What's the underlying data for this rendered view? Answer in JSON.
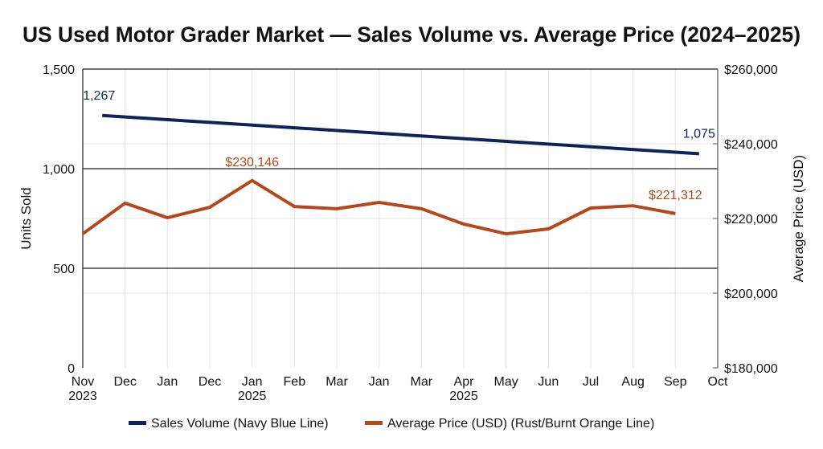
{
  "chart_data": {
    "type": "line",
    "title": "US Used Motor Grader Market — Sales Volume vs. Average Price (2024–2025)",
    "categories": [
      [
        "Nov",
        "2023"
      ],
      [
        "Dec",
        ""
      ],
      [
        "Jan",
        ""
      ],
      [
        "Dec",
        ""
      ],
      [
        "Jan",
        "2025"
      ],
      [
        "Feb",
        ""
      ],
      [
        "Mar",
        ""
      ],
      [
        "Jan",
        ""
      ],
      [
        "Mar",
        ""
      ],
      [
        "Apr",
        "2025"
      ],
      [
        "May",
        ""
      ],
      [
        "Jun",
        ""
      ],
      [
        "Jul",
        ""
      ],
      [
        "Aug",
        ""
      ],
      [
        "Sep",
        ""
      ],
      [
        "Oct",
        ""
      ]
    ],
    "ylabel_left": "Units Sold",
    "ylabel_right": "Average Price (USD)",
    "ylim_left": [
      0,
      1500
    ],
    "yticks_left": [
      {
        "v": 0,
        "label": "0"
      },
      {
        "v": 500,
        "label": "500"
      },
      {
        "v": 1000,
        "label": "1,000"
      },
      {
        "v": 1500,
        "label": "1,500"
      }
    ],
    "ylim_right": [
      180000,
      260000
    ],
    "yticks_right": [
      {
        "v": 180000,
        "label": "$180,000"
      },
      {
        "v": 200000,
        "label": "$200,000"
      },
      {
        "v": 220000,
        "label": "$220,000"
      },
      {
        "v": 240000,
        "label": "$240,000"
      },
      {
        "v": 260000,
        "label": "$260,000"
      }
    ],
    "grid": true,
    "legend_position": "bottom",
    "series": [
      {
        "name": "Sales Volume (Navy Blue Line)",
        "axis": "left",
        "color": "#0d2359",
        "x": [
          0.46,
          14.56
        ],
        "values": [
          1267,
          1075
        ],
        "labels": [
          {
            "i": 0,
            "text": "1,267"
          },
          {
            "i": 1,
            "text": "1,075"
          }
        ]
      },
      {
        "name": "Average Price (USD) (Rust/Burnt Orange Line)",
        "axis": "right",
        "color": "#b5481a",
        "x": [
          0,
          1,
          2,
          3,
          4,
          5,
          6,
          7,
          8,
          9,
          10,
          11,
          12,
          13,
          14
        ],
        "values": [
          215900,
          224100,
          220200,
          223000,
          230146,
          223200,
          222600,
          224300,
          222600,
          218500,
          215900,
          217200,
          222800,
          223400,
          221312
        ],
        "labels": [
          {
            "i": 4,
            "text": "$230,146"
          },
          {
            "i": 14,
            "text": "$221,312"
          }
        ]
      }
    ]
  }
}
